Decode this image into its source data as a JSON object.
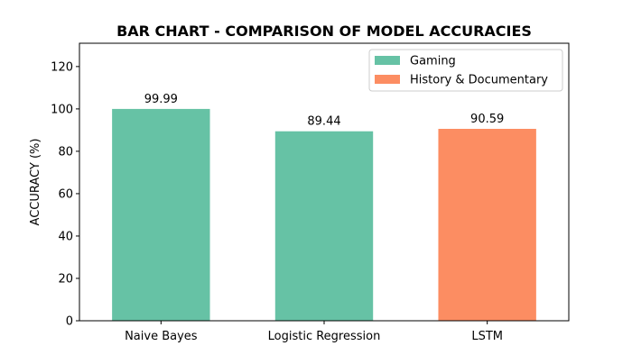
{
  "chart_data": {
    "type": "bar",
    "title": "BAR CHART - COMPARISON OF MODEL ACCURACIES",
    "xlabel": "",
    "ylabel": "ACCURACY (%)",
    "categories": [
      "Naive Bayes",
      "Logistic Regression",
      "LSTM"
    ],
    "values": [
      99.99,
      89.44,
      90.59
    ],
    "value_labels": [
      "99.99",
      "89.44",
      "90.59"
    ],
    "bar_groups": [
      "Gaming",
      "Gaming",
      "History & Documentary"
    ],
    "ylim": [
      0,
      131
    ],
    "yticks": [
      0,
      20,
      40,
      60,
      80,
      100,
      120
    ],
    "ytick_labels": [
      "0",
      "20",
      "40",
      "60",
      "80",
      "100",
      "120"
    ],
    "grid": false,
    "legend": {
      "placement": "top-right",
      "entries": [
        {
          "label": "Gaming",
          "color": "#66c2a5"
        },
        {
          "label": "History & Documentary",
          "color": "#fc8d62"
        }
      ]
    }
  }
}
